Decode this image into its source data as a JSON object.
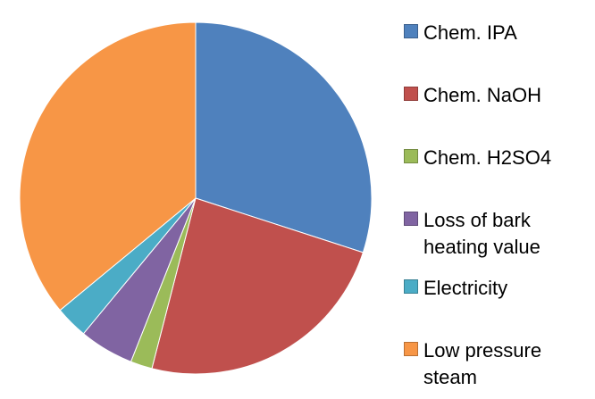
{
  "chart_data": {
    "type": "pie",
    "categories": [
      "Chem. IPA",
      "Chem. NaOH",
      "Chem. H2SO4",
      "Loss of bark heating value",
      "Electricity",
      "Low pressure steam"
    ],
    "values": [
      30,
      24,
      2,
      5,
      3,
      36
    ],
    "colors": [
      "#4f81bd",
      "#c0504d",
      "#9bbb59",
      "#8064a2",
      "#4bacc6",
      "#f79646"
    ],
    "legend": "right"
  }
}
